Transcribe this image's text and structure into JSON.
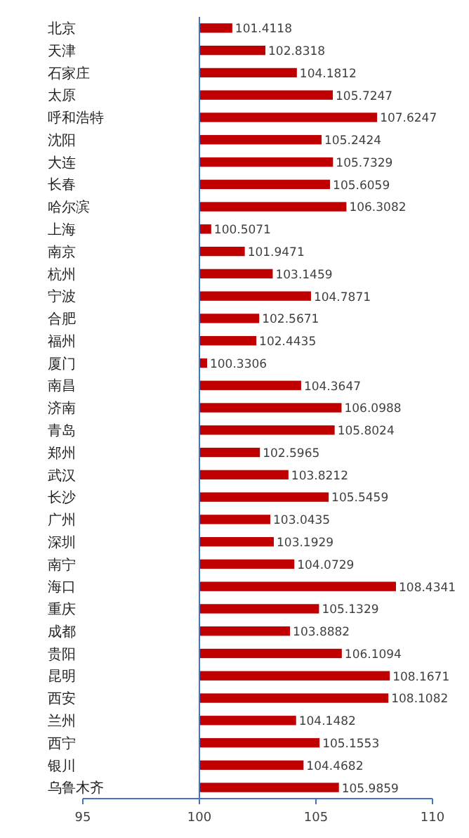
{
  "chart_data": {
    "type": "bar",
    "orientation": "horizontal",
    "color": "#c00000",
    "categories": [
      "北京",
      "天津",
      "石家庄",
      "太原",
      "呼和浩特",
      "沈阳",
      "大连",
      "长春",
      "哈尔滨",
      "上海",
      "南京",
      "杭州",
      "宁波",
      "合肥",
      "福州",
      "厦门",
      "南昌",
      "济南",
      "青岛",
      "郑州",
      "武汉",
      "长沙",
      "广州",
      "深圳",
      "南宁",
      "海口",
      "重庆",
      "成都",
      "贵阳",
      "昆明",
      "西安",
      "兰州",
      "西宁",
      "银川",
      "乌鲁木齐"
    ],
    "base": [
      100,
      100,
      100,
      100,
      100,
      100,
      100,
      100,
      100,
      100,
      100,
      100,
      100,
      100,
      100,
      100,
      100,
      100,
      100,
      100,
      100,
      100,
      100,
      100,
      100,
      100,
      100,
      100,
      100,
      100,
      100,
      100,
      100,
      100,
      100
    ],
    "values": [
      1.4118,
      2.8318,
      4.1812,
      5.7247,
      7.6247,
      5.2424,
      5.7329,
      5.6059,
      6.3082,
      0.5071,
      1.9471,
      3.1459,
      4.7871,
      2.5671,
      2.4435,
      0.3306,
      4.3647,
      6.0988,
      5.8024,
      2.5965,
      3.8212,
      5.5459,
      3.0435,
      3.1929,
      4.0729,
      8.4341,
      5.1329,
      3.8882,
      6.1094,
      8.1671,
      8.1082,
      4.1482,
      5.1553,
      4.4682,
      5.9859
    ],
    "value_labels": [
      "101.4118",
      "102.8318",
      "104.1812",
      "105.7247",
      "107.6247",
      "105.2424",
      "105.7329",
      "105.6059",
      "106.3082",
      "100.5071",
      "101.9471",
      "103.1459",
      "104.7871",
      "102.5671",
      "102.4435",
      "100.3306",
      "104.3647",
      "106.0988",
      "105.8024",
      "102.5965",
      "103.8212",
      "105.5459",
      "103.0435",
      "103.1929",
      "104.0729",
      "108.4341",
      "105.1329",
      "103.8882",
      "106.1094",
      "108.1671",
      "108.1082",
      "104.1482",
      "105.1553",
      "104.4682",
      "105.9859"
    ],
    "ref_lines": [
      {
        "axis": "x",
        "value": 100,
        "color": "#4472c4"
      }
    ],
    "xlim": [
      95,
      110
    ],
    "xticks": [
      95,
      100,
      105,
      110
    ],
    "grid": false
  }
}
